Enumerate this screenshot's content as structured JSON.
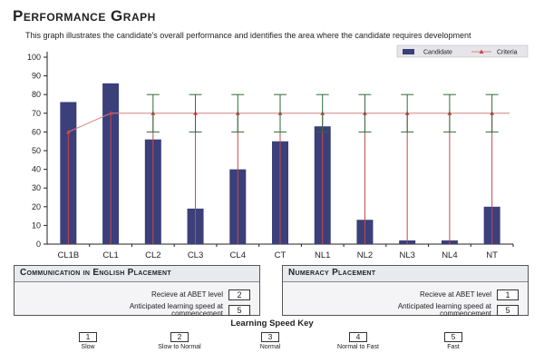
{
  "header": {
    "title": "Performance Graph",
    "subtitle": "This graph illustrates the candidate's overall performance and identifies the area where the candidate requires development"
  },
  "chart_data": {
    "type": "bar",
    "categories": [
      "CL1B",
      "CL1",
      "CL2",
      "CL3",
      "CL4",
      "CT",
      "NL1",
      "NL2",
      "NL3",
      "NL4",
      "NT"
    ],
    "series": [
      {
        "name": "Candidate",
        "kind": "bar",
        "color": "#3b3f7a",
        "values": [
          76,
          86,
          56,
          19,
          40,
          55,
          63,
          13,
          2,
          2,
          20
        ]
      },
      {
        "name": "Criteria",
        "kind": "line",
        "color": "#d98080",
        "values": [
          60,
          70,
          70,
          70,
          70,
          70,
          70,
          70,
          70,
          70,
          70
        ]
      }
    ],
    "error_bars": {
      "color": "#2e6b3a",
      "low": [
        null,
        null,
        60,
        60,
        60,
        60,
        60,
        60,
        60,
        60,
        60
      ],
      "high": [
        null,
        null,
        80,
        80,
        80,
        80,
        80,
        80,
        80,
        80,
        80
      ]
    },
    "ylim": [
      0,
      100
    ],
    "yticks": [
      0,
      10,
      20,
      30,
      40,
      50,
      60,
      70,
      80,
      90,
      100
    ],
    "grid": false,
    "legend": "top-right"
  },
  "placement_english": {
    "title": "Communication in English Placement",
    "receive_label": "Recieve at ABET level",
    "receive_value": "2",
    "speed_label_line1": "Anticipated learning speed at",
    "speed_label_line2": "commencement",
    "speed_value": "5"
  },
  "placement_numeracy": {
    "title": "Numeracy Placement",
    "receive_label": "Recieve at ABET level",
    "receive_value": "1",
    "speed_label_line1": "Anticipated learning speed at",
    "speed_label_line2": "commencement",
    "speed_value": "5"
  },
  "learning_key": {
    "title": "Learning Speed Key",
    "items": [
      {
        "value": "1",
        "label": "Slow"
      },
      {
        "value": "2",
        "label": "Slow to Normal"
      },
      {
        "value": "3",
        "label": "Normal"
      },
      {
        "value": "4",
        "label": "Normal to Fast"
      },
      {
        "value": "5",
        "label": "Fast"
      }
    ]
  }
}
